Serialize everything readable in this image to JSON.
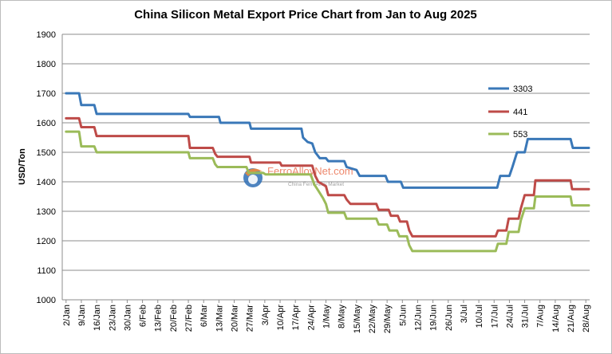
{
  "chart_data": {
    "type": "line",
    "title": "China Silicon Metal Export Price Chart from Jan to Aug 2025",
    "xlabel": "",
    "ylabel": "USD/Ton",
    "ylim": [
      1000,
      1900
    ],
    "yticks": [
      1000,
      1100,
      1200,
      1300,
      1400,
      1500,
      1600,
      1700,
      1800,
      1900
    ],
    "grid": "horizontal",
    "legend_position": "right",
    "categories": [
      "2/Jan",
      "9/Jan",
      "16/Jan",
      "23/Jan",
      "30/Jan",
      "6/Feb",
      "13/Feb",
      "20/Feb",
      "27/Feb",
      "6/Mar",
      "13/Mar",
      "20/Mar",
      "27/Mar",
      "3/Apr",
      "10/Apr",
      "17/Apr",
      "24/Apr",
      "1/May",
      "8/May",
      "15/May",
      "22/May",
      "29/May",
      "5/Jun",
      "12/Jun",
      "19/Jun",
      "26/Jun",
      "3/Jul",
      "10/Jul",
      "17/Jul",
      "24/Jul",
      "31/Jul",
      "7/Aug",
      "14/Aug",
      "21/Aug",
      "28/Aug"
    ],
    "series": [
      {
        "name": "3303",
        "color": "#3a78b8",
        "points": [
          [
            0,
            1700
          ],
          [
            0.85,
            1700
          ],
          [
            1.0,
            1660
          ],
          [
            1.85,
            1660
          ],
          [
            2.0,
            1630
          ],
          [
            8.0,
            1630
          ],
          [
            8.1,
            1620
          ],
          [
            10.0,
            1620
          ],
          [
            10.1,
            1600
          ],
          [
            12.0,
            1600
          ],
          [
            12.1,
            1580
          ],
          [
            15.4,
            1580
          ],
          [
            15.5,
            1550
          ],
          [
            15.8,
            1535
          ],
          [
            16.1,
            1530
          ],
          [
            16.3,
            1500
          ],
          [
            16.6,
            1480
          ],
          [
            17.0,
            1480
          ],
          [
            17.15,
            1470
          ],
          [
            18.2,
            1470
          ],
          [
            18.35,
            1450
          ],
          [
            19.0,
            1440
          ],
          [
            19.2,
            1420
          ],
          [
            20.9,
            1420
          ],
          [
            21.05,
            1400
          ],
          [
            21.9,
            1400
          ],
          [
            22.05,
            1380
          ],
          [
            28.2,
            1380
          ],
          [
            28.4,
            1420
          ],
          [
            29.0,
            1420
          ],
          [
            29.2,
            1450
          ],
          [
            29.5,
            1500
          ],
          [
            30.0,
            1500
          ],
          [
            30.2,
            1545
          ],
          [
            33.0,
            1545
          ],
          [
            33.15,
            1515
          ],
          [
            34.2,
            1515
          ]
        ]
      },
      {
        "name": "441",
        "color": "#be4b48",
        "points": [
          [
            0,
            1615
          ],
          [
            0.85,
            1615
          ],
          [
            1.0,
            1585
          ],
          [
            1.85,
            1585
          ],
          [
            2.0,
            1555
          ],
          [
            8.0,
            1555
          ],
          [
            8.1,
            1515
          ],
          [
            9.6,
            1515
          ],
          [
            9.75,
            1495
          ],
          [
            9.9,
            1485
          ],
          [
            12.0,
            1485
          ],
          [
            12.1,
            1465
          ],
          [
            14.0,
            1465
          ],
          [
            14.1,
            1455
          ],
          [
            16.1,
            1455
          ],
          [
            16.3,
            1420
          ],
          [
            16.5,
            1400
          ],
          [
            17.0,
            1385
          ],
          [
            17.15,
            1355
          ],
          [
            18.2,
            1355
          ],
          [
            18.35,
            1340
          ],
          [
            18.6,
            1325
          ],
          [
            20.3,
            1325
          ],
          [
            20.45,
            1305
          ],
          [
            21.1,
            1305
          ],
          [
            21.25,
            1285
          ],
          [
            21.7,
            1285
          ],
          [
            21.85,
            1265
          ],
          [
            22.3,
            1265
          ],
          [
            22.45,
            1235
          ],
          [
            22.65,
            1215
          ],
          [
            28.1,
            1215
          ],
          [
            28.25,
            1235
          ],
          [
            28.8,
            1235
          ],
          [
            28.95,
            1275
          ],
          [
            29.6,
            1275
          ],
          [
            29.75,
            1310
          ],
          [
            30.0,
            1355
          ],
          [
            30.6,
            1355
          ],
          [
            30.7,
            1405
          ],
          [
            33.0,
            1405
          ],
          [
            33.1,
            1375
          ],
          [
            34.2,
            1375
          ]
        ]
      },
      {
        "name": "553",
        "color": "#9bbb59",
        "points": [
          [
            0,
            1570
          ],
          [
            0.85,
            1570
          ],
          [
            1.0,
            1520
          ],
          [
            1.85,
            1520
          ],
          [
            2.0,
            1500
          ],
          [
            8.0,
            1500
          ],
          [
            8.1,
            1480
          ],
          [
            9.6,
            1480
          ],
          [
            9.75,
            1460
          ],
          [
            9.9,
            1450
          ],
          [
            11.8,
            1450
          ],
          [
            11.95,
            1430
          ],
          [
            12.9,
            1430
          ],
          [
            13.05,
            1425
          ],
          [
            16.0,
            1425
          ],
          [
            16.25,
            1390
          ],
          [
            16.5,
            1370
          ],
          [
            16.8,
            1345
          ],
          [
            17.0,
            1325
          ],
          [
            17.15,
            1295
          ],
          [
            18.2,
            1295
          ],
          [
            18.35,
            1275
          ],
          [
            20.3,
            1275
          ],
          [
            20.45,
            1255
          ],
          [
            21.0,
            1255
          ],
          [
            21.15,
            1235
          ],
          [
            21.65,
            1235
          ],
          [
            21.8,
            1215
          ],
          [
            22.3,
            1215
          ],
          [
            22.45,
            1185
          ],
          [
            22.65,
            1165
          ],
          [
            28.1,
            1165
          ],
          [
            28.25,
            1190
          ],
          [
            28.8,
            1190
          ],
          [
            28.95,
            1230
          ],
          [
            29.6,
            1230
          ],
          [
            29.75,
            1270
          ],
          [
            30.0,
            1310
          ],
          [
            30.6,
            1310
          ],
          [
            30.7,
            1350
          ],
          [
            33.0,
            1350
          ],
          [
            33.1,
            1320
          ],
          [
            34.2,
            1320
          ]
        ]
      }
    ],
    "legend": [
      {
        "name": "3303",
        "color": "#3a78b8"
      },
      {
        "name": "441",
        "color": "#be4b48"
      },
      {
        "name": "553",
        "color": "#9bbb59"
      }
    ]
  },
  "watermark": {
    "text": "FerroAlloyNet.com",
    "subtext": "China FerroAlloy Market"
  }
}
